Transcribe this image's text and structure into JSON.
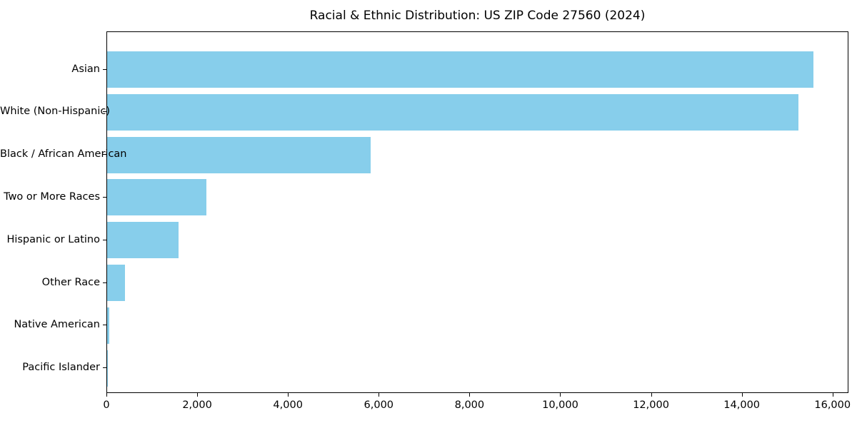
{
  "chart_data": {
    "type": "bar",
    "orientation": "horizontal",
    "title": "Racial & Ethnic Distribution: US ZIP Code 27560 (2024)",
    "categories": [
      "Asian",
      "White (Non-Hispanic)",
      "Black / African American",
      "Two or More Races",
      "Hispanic or Latino",
      "Other Race",
      "Native American",
      "Pacific Islander"
    ],
    "values": [
      15570,
      15240,
      5810,
      2180,
      1580,
      400,
      50,
      20
    ],
    "xlabel": "",
    "ylabel": "",
    "xlim": [
      0,
      16350
    ],
    "x_ticks": [
      0,
      2000,
      4000,
      6000,
      8000,
      10000,
      12000,
      14000,
      16000
    ],
    "x_tick_labels": [
      "0",
      "2,000",
      "4,000",
      "6,000",
      "8,000",
      "10,000",
      "12,000",
      "14,000",
      "16,000"
    ],
    "bar_color": "#87CEEB",
    "spine_color": "#000000",
    "text_color": "#000000",
    "grid": false,
    "legend": null
  }
}
